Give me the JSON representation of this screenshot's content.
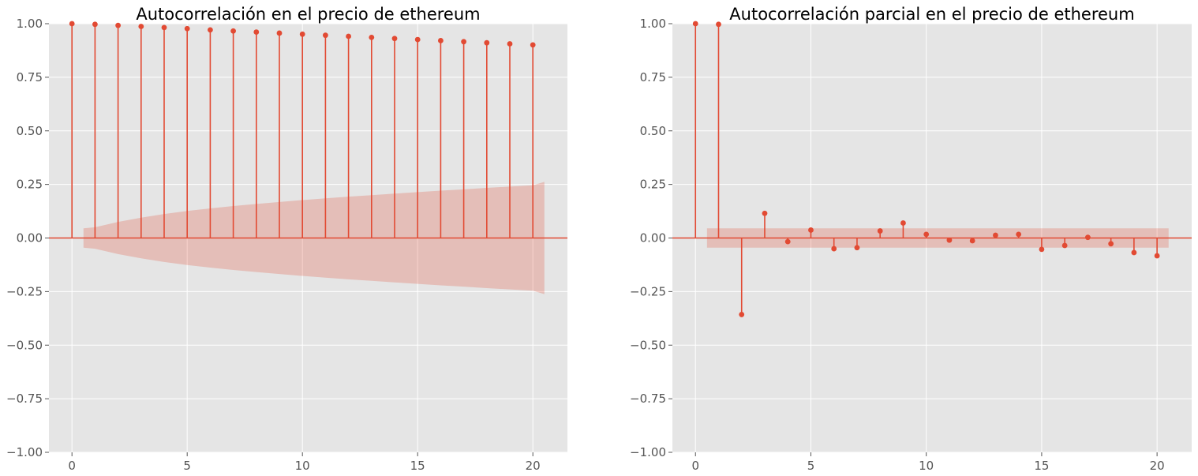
{
  "chart_data": [
    {
      "type": "stem",
      "title": "Autocorrelación en el precio de ethereum",
      "xlabel": "",
      "ylabel": "",
      "xlim": [
        -1,
        21.5
      ],
      "ylim": [
        -1.0,
        1.0
      ],
      "x_ticks": [
        0,
        5,
        10,
        15,
        20
      ],
      "x_tick_labels": [
        "0",
        "5",
        "10",
        "15",
        "20"
      ],
      "y_ticks": [
        -1.0,
        -0.75,
        -0.5,
        -0.25,
        0.0,
        0.25,
        0.5,
        0.75,
        1.0
      ],
      "y_tick_labels": [
        "−1.00",
        "−0.75",
        "−0.50",
        "−0.25",
        "0.00",
        "0.25",
        "0.50",
        "0.75",
        "1.00"
      ],
      "grid": true,
      "lags": [
        0,
        1,
        2,
        3,
        4,
        5,
        6,
        7,
        8,
        9,
        10,
        11,
        12,
        13,
        14,
        15,
        16,
        17,
        18,
        19,
        20
      ],
      "values": [
        1.0,
        0.997,
        0.992,
        0.987,
        0.982,
        0.977,
        0.971,
        0.966,
        0.961,
        0.956,
        0.951,
        0.946,
        0.941,
        0.936,
        0.931,
        0.926,
        0.921,
        0.916,
        0.911,
        0.906,
        0.901
      ],
      "confidence_band": {
        "x": [
          0.5,
          1,
          2,
          3,
          4,
          5,
          6,
          7,
          8,
          9,
          10,
          11,
          12,
          13,
          14,
          15,
          16,
          17,
          18,
          19,
          20,
          20.5
        ],
        "upper": [
          0.045,
          0.05,
          0.075,
          0.095,
          0.112,
          0.126,
          0.138,
          0.149,
          0.159,
          0.168,
          0.177,
          0.185,
          0.193,
          0.2,
          0.207,
          0.214,
          0.221,
          0.227,
          0.234,
          0.24,
          0.246,
          0.262
        ]
      },
      "colors": {
        "stem": "#e24a33",
        "band": "#e24a33",
        "background": "#e5e5e5",
        "grid": "#ffffff"
      }
    },
    {
      "type": "stem",
      "title": "Autocorrelación parcial en el precio de ethereum",
      "xlabel": "",
      "ylabel": "",
      "xlim": [
        -1,
        21.5
      ],
      "ylim": [
        -1.0,
        1.0
      ],
      "x_ticks": [
        0,
        5,
        10,
        15,
        20
      ],
      "x_tick_labels": [
        "0",
        "5",
        "10",
        "15",
        "20"
      ],
      "y_ticks": [
        -1.0,
        -0.75,
        -0.5,
        -0.25,
        0.0,
        0.25,
        0.5,
        0.75,
        1.0
      ],
      "y_tick_labels": [
        "−1.00",
        "−0.75",
        "−0.50",
        "−0.25",
        "0.00",
        "0.25",
        "0.50",
        "0.75",
        "1.00"
      ],
      "grid": true,
      "lags": [
        0,
        1,
        2,
        3,
        4,
        5,
        6,
        7,
        8,
        9,
        10,
        11,
        12,
        13,
        14,
        15,
        16,
        17,
        18,
        19,
        20
      ],
      "values": [
        1.0,
        0.997,
        -0.357,
        0.115,
        -0.017,
        0.037,
        -0.05,
        -0.045,
        0.033,
        0.07,
        0.017,
        -0.01,
        -0.013,
        0.013,
        0.017,
        -0.053,
        -0.035,
        0.003,
        -0.027,
        -0.068,
        -0.083
      ],
      "confidence_band": {
        "x": [
          0.5,
          20.5
        ],
        "upper": [
          0.045,
          0.045
        ]
      },
      "colors": {
        "stem": "#e24a33",
        "band": "#e24a33",
        "background": "#e5e5e5",
        "grid": "#ffffff"
      }
    }
  ]
}
